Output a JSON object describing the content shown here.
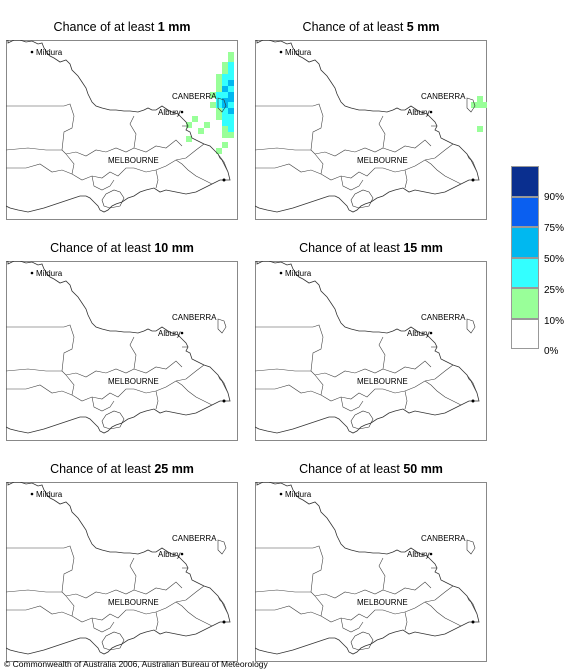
{
  "panels": [
    {
      "prefix": "Chance of at least ",
      "amount": "1 mm"
    },
    {
      "prefix": "Chance of at least ",
      "amount": "5 mm"
    },
    {
      "prefix": "Chance of at least ",
      "amount": "10 mm"
    },
    {
      "prefix": "Chance of at least ",
      "amount": "15 mm"
    },
    {
      "prefix": "Chance of at least ",
      "amount": "25 mm"
    },
    {
      "prefix": "Chance of at least ",
      "amount": "50 mm"
    }
  ],
  "cities": {
    "mildura": "Mildura",
    "canberra": "CANBERRA",
    "albury": "Albury",
    "melbourne": "MELBOURNE"
  },
  "legend": {
    "labels": [
      "90%",
      "75%",
      "50%",
      "25%",
      "10%",
      "0%"
    ],
    "colors": [
      "#0a2f8f",
      "#0a5ff0",
      "#00b8f0",
      "#33ffff",
      "#99ff99",
      "#ffffff"
    ]
  },
  "copyright": "© Commonwealth of Australia 2006, Australian Bureau of Meteorology"
}
